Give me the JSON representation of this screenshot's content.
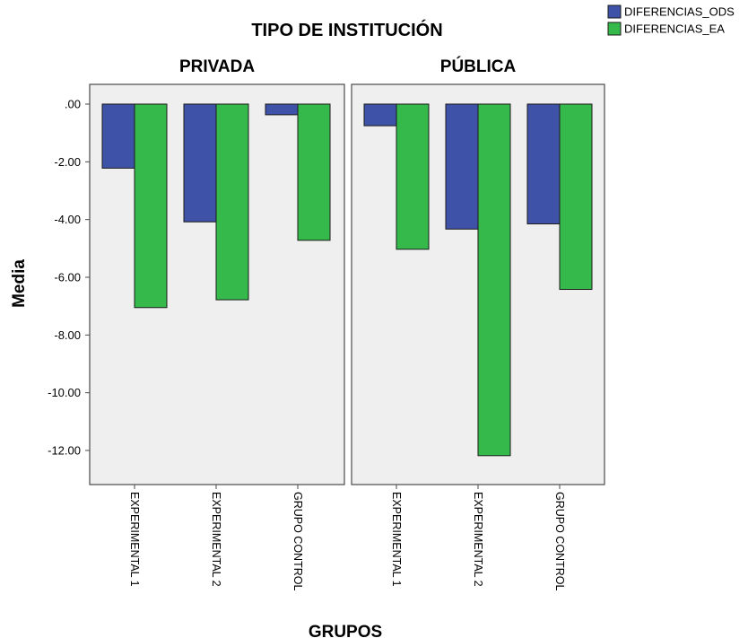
{
  "chart_data": {
    "type": "bar",
    "title": "TIPO DE INSTITUCIÓN",
    "xlabel": "GRUPOS",
    "ylabel": "Media",
    "ylim": [
      -13.2,
      0.6
    ],
    "yticks": [
      0,
      -2,
      -4,
      -6,
      -8,
      -10,
      -12
    ],
    "ytick_labels": [
      ".00",
      "-2.00",
      "-4.00",
      "-6.00",
      "-8.00",
      "-10.00",
      "-12.00"
    ],
    "categories": [
      "EXPERIMENTAL 1",
      "EXPERIMENTAL 2",
      "GRUPO CONTROL"
    ],
    "legend_position": "top-right",
    "series_colors": [
      "#3e53a8",
      "#35b94a"
    ],
    "panels": [
      {
        "label": "PRIVADA",
        "series": [
          {
            "name": "DIFERENCIAS_ODS",
            "values": [
              -2.22,
              -4.08,
              -0.37
            ]
          },
          {
            "name": "DIFERENCIAS_EA",
            "values": [
              -7.05,
              -6.78,
              -4.72
            ]
          }
        ]
      },
      {
        "label": "PÚBLICA",
        "series": [
          {
            "name": "DIFERENCIAS_ODS",
            "values": [
              -0.75,
              -4.33,
              -4.15
            ]
          },
          {
            "name": "DIFERENCIAS_EA",
            "values": [
              -5.03,
              -12.18,
              -6.42
            ]
          }
        ]
      }
    ]
  }
}
